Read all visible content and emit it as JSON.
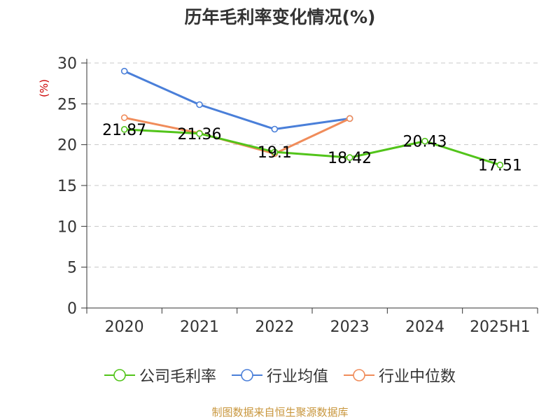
{
  "chart_data": {
    "type": "line",
    "title": "历年毛利率变化情况(%)",
    "ylabel": "(%)",
    "categories": [
      "2020",
      "2021",
      "2022",
      "2023",
      "2024",
      "2025H1"
    ],
    "ylim": [
      0,
      30
    ],
    "yticks": [
      0,
      5,
      10,
      15,
      20,
      25,
      30
    ],
    "grid": true,
    "legend_position": "bottom",
    "series": [
      {
        "name": "公司毛利率",
        "color": "#52c41a",
        "values": [
          21.87,
          21.36,
          19.1,
          18.42,
          20.43,
          17.51
        ],
        "labels": [
          "21.87",
          "21.36",
          "19.1",
          "18.42",
          "20.43",
          "17.51"
        ]
      },
      {
        "name": "行业均值",
        "color": "#4a7fd9",
        "values": [
          29.0,
          24.9,
          21.9,
          23.2,
          null,
          null
        ]
      },
      {
        "name": "行业中位数",
        "color": "#f08c5a",
        "values": [
          23.3,
          21.4,
          18.9,
          23.2,
          null,
          null
        ]
      }
    ]
  },
  "footer": {
    "source": "制图数据来自恒生聚源数据库"
  }
}
